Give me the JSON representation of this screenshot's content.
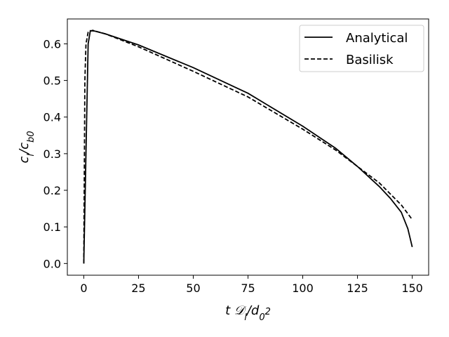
{
  "chart_data": {
    "type": "line",
    "xlabel": [
      {
        "text": "t 𝒟"
      },
      {
        "text": "l",
        "shift": "sub"
      },
      {
        "text": "/d"
      },
      {
        "text": "0",
        "shift": "sub"
      },
      {
        "text": "2",
        "shift": "sup"
      }
    ],
    "ylabel": [
      {
        "text": "c"
      },
      {
        "text": "l",
        "shift": "sub"
      },
      {
        "text": "/c"
      },
      {
        "text": "b0",
        "shift": "sub"
      }
    ],
    "xlim": [
      -7.5,
      157.5
    ],
    "xticks": [
      0,
      25,
      50,
      75,
      100,
      125,
      150
    ],
    "ylim": [
      -0.032,
      0.668
    ],
    "yticks": [
      {
        "value": 0,
        "label": "0.0"
      },
      0.1,
      0.2,
      0.3,
      0.4,
      0.5,
      0.6
    ],
    "legend": "upper right",
    "series": [
      {
        "name": "Analytical",
        "color": "#000000",
        "dash": "solid",
        "x": [
          0,
          1,
          2,
          3,
          5,
          10,
          25,
          50,
          75,
          100,
          115,
          125,
          135,
          140,
          145,
          148,
          150
        ],
        "values": [
          0,
          0.3,
          0.6,
          0.636,
          0.635,
          0.627,
          0.597,
          0.535,
          0.465,
          0.375,
          0.315,
          0.265,
          0.21,
          0.178,
          0.14,
          0.095,
          0.045
        ]
      },
      {
        "name": "Basilisk",
        "color": "#000000",
        "dash": "dashed",
        "x": [
          0,
          0.5,
          1,
          2,
          4,
          10,
          25,
          50,
          75,
          100,
          115,
          125,
          135,
          145,
          150
        ],
        "values": [
          0,
          0.5,
          0.6,
          0.632,
          0.637,
          0.627,
          0.592,
          0.525,
          0.455,
          0.367,
          0.31,
          0.265,
          0.22,
          0.16,
          0.12
        ]
      }
    ]
  }
}
